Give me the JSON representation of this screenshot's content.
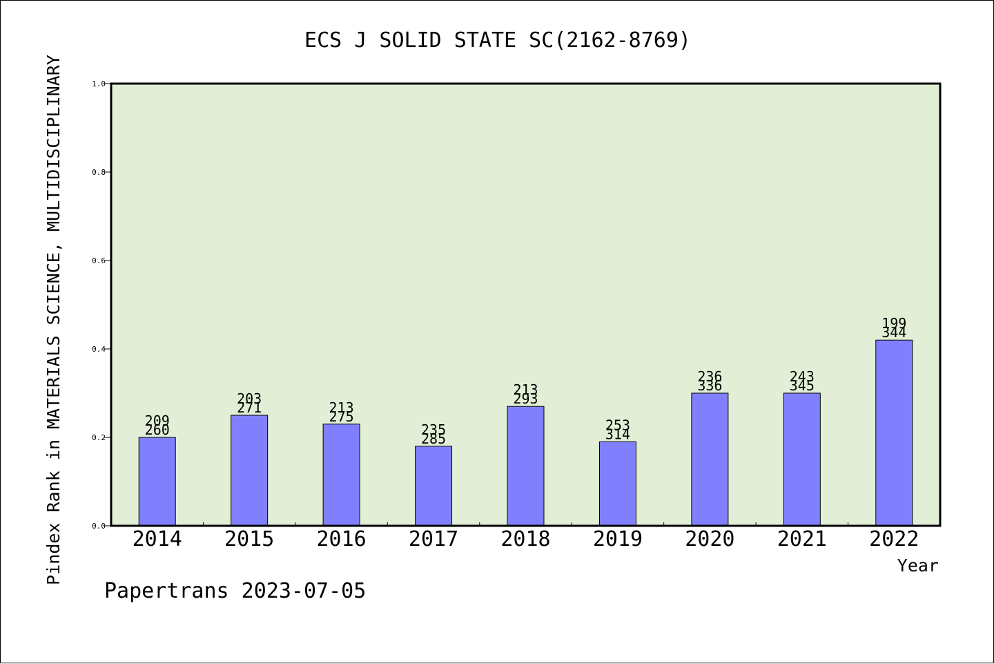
{
  "chart_data": {
    "type": "bar",
    "title": "ECS J SOLID STATE SC(2162-8769)",
    "xlabel": "Year",
    "ylabel": "Pindex Rank in MATERIALS SCIENCE, MULTIDISCIPLINARY",
    "ylim": [
      0.0,
      1.0
    ],
    "yticks": [
      "0.0",
      "0.2",
      "0.4",
      "0.6",
      "0.8",
      "1.0"
    ],
    "categories": [
      "2014",
      "2015",
      "2016",
      "2017",
      "2018",
      "2019",
      "2020",
      "2021",
      "2022"
    ],
    "values": [
      0.2,
      0.25,
      0.23,
      0.18,
      0.27,
      0.19,
      0.3,
      0.3,
      0.42
    ],
    "label_top": [
      "209",
      "203",
      "213",
      "235",
      "213",
      "253",
      "236",
      "243",
      "199"
    ],
    "label_bottom": [
      "260",
      "271",
      "275",
      "285",
      "293",
      "314",
      "336",
      "345",
      "344"
    ],
    "grid": false,
    "colors": {
      "bar": "#8080ff",
      "plot_bg": "#e2efd6",
      "axis": "#000000"
    }
  },
  "footer": {
    "credit": "Papertrans 2023-07-05"
  }
}
